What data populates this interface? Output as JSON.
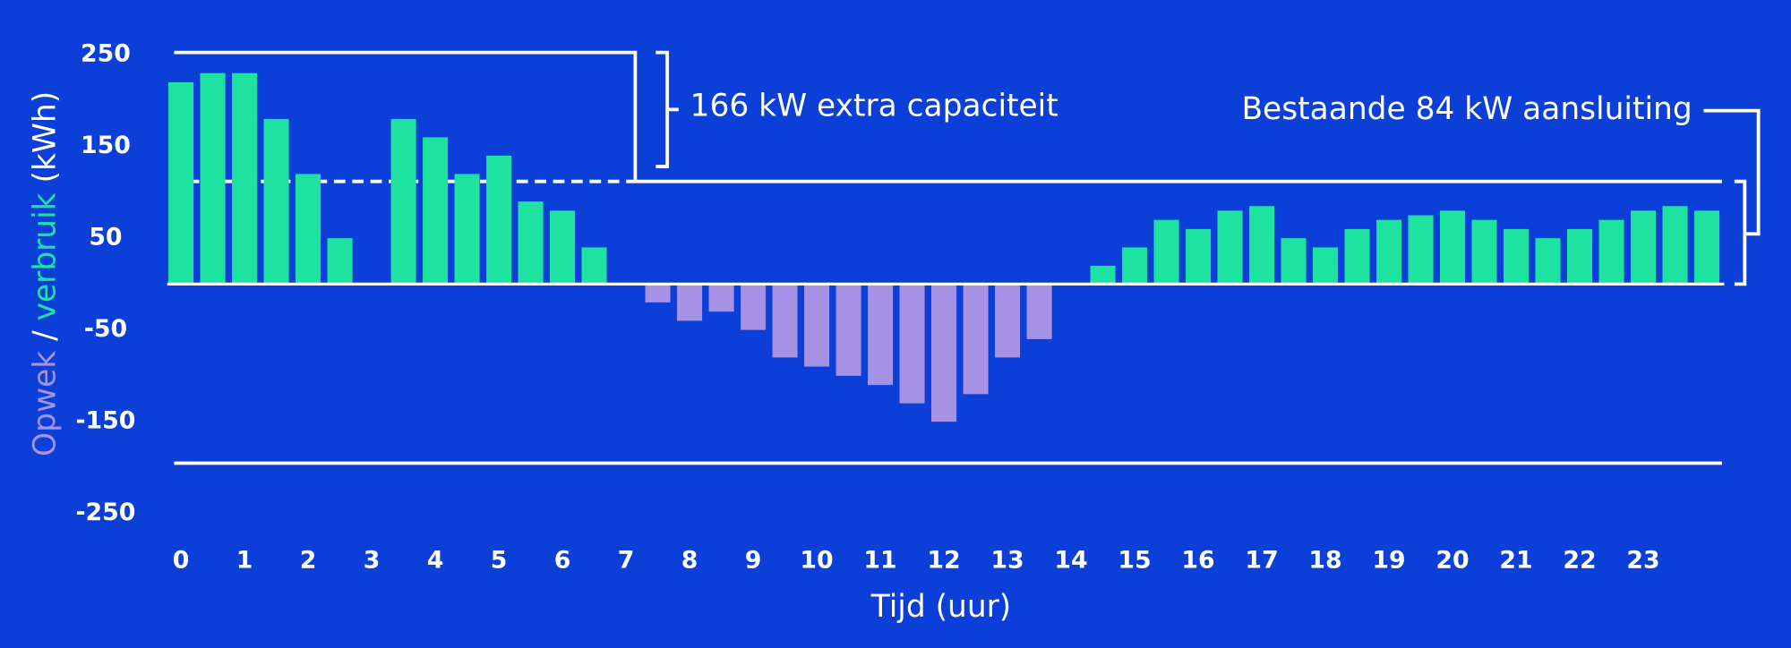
{
  "chart_data": {
    "type": "bar",
    "ylabel_parts": [
      "Opwek",
      "/",
      "verbruik",
      "(kWh)"
    ],
    "xlabel": "Tijd (uur)",
    "annotations": [
      "166 kW extra capaciteit",
      "Bestaande 84 kW aansluiting"
    ],
    "categories": [
      "0",
      null,
      "1",
      null,
      "2",
      null,
      "3",
      null,
      "4",
      null,
      "5",
      null,
      "6",
      null,
      "7",
      null,
      "8",
      null,
      "9",
      null,
      "10",
      null,
      "11",
      null,
      "12",
      null,
      "13",
      null,
      "14",
      null,
      "15",
      null,
      "16",
      null,
      "17",
      null,
      "18",
      null,
      "19",
      null,
      "20",
      null,
      "21",
      null,
      "22",
      null,
      "23",
      null,
      null
    ],
    "values": [
      220,
      230,
      230,
      180,
      120,
      50,
      0,
      180,
      160,
      120,
      140,
      90,
      80,
      40,
      0,
      -20,
      -40,
      -30,
      -50,
      -80,
      -90,
      -100,
      -110,
      -130,
      -150,
      -120,
      -80,
      -60,
      0,
      20,
      40,
      70,
      60,
      80,
      85,
      50,
      40,
      60,
      70,
      75,
      80,
      70,
      60,
      50,
      60,
      70,
      80,
      85,
      80
    ],
    "colors": {
      "positive": "#1ee3a0",
      "negative": "#a692e4",
      "background": "#0b3fd8"
    },
    "ylim": [
      -250,
      250
    ],
    "yticks": [
      -250,
      -150,
      -50,
      50,
      150,
      250
    ]
  }
}
